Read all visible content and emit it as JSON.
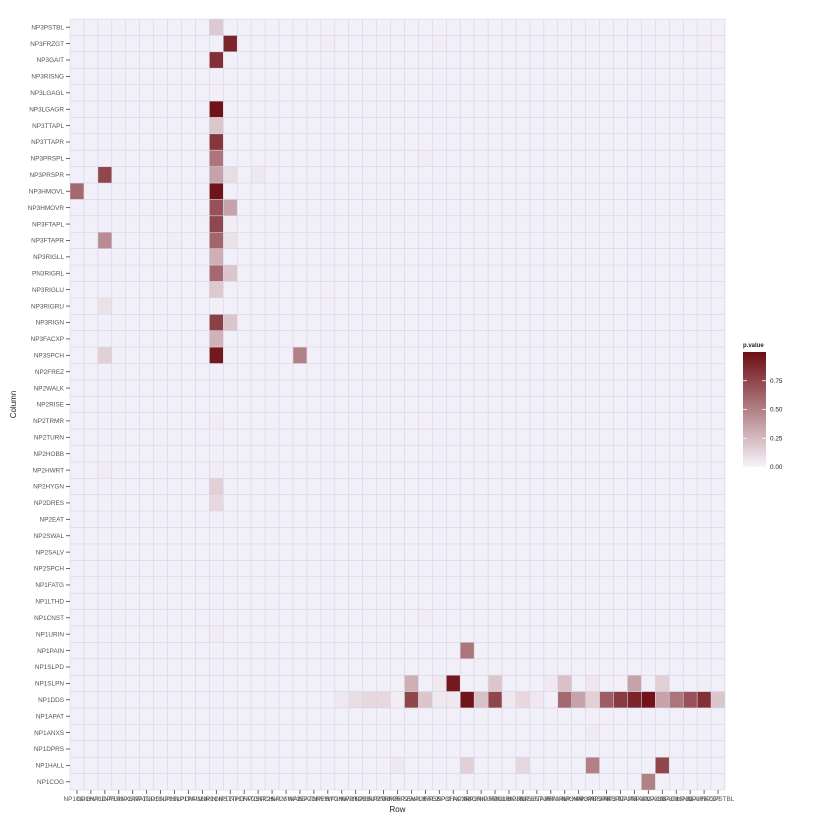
{
  "chart_data": {
    "type": "heatmap",
    "xlabel": "Row",
    "ylabel": "Column",
    "legend_title": "p.value",
    "legend_ticks": [
      "0.00",
      "0.25",
      "0.50",
      "0.75"
    ],
    "legend_tick_values": [
      0,
      0.25,
      0.5,
      0.75
    ],
    "legend_position": "right",
    "value_range": [
      0,
      1
    ],
    "colors": {
      "low": "#f6f4fa",
      "high": "#6d0d12",
      "grid": "#d8d2e6",
      "panel": "#f1eff7"
    },
    "grid": true,
    "x_tick_labels": [
      "NP1COG",
      "NP1HALL",
      "NP1DPRS",
      "NP1ANXS",
      "NP1APAT",
      "NP1DDS",
      "NP1SLPN",
      "NP1SLPD",
      "NP1PAIN",
      "NP1URIN",
      "NP1CNST",
      "NP1LTHD",
      "NP1FATG",
      "NP2SPCH",
      "NP2SALV",
      "NP2SWAL",
      "NP2EAT",
      "NP2DRES",
      "NP2HYGN",
      "NP2HWRT",
      "NP2HOBB",
      "NP2TURN",
      "NP2TRMR",
      "NP2RISE",
      "NP2WALK",
      "NP2FREZ",
      "NP3SPCH",
      "NP3FACXP",
      "NP3RIGN",
      "NP3RIGRU",
      "NP3RIGLU",
      "PN3RIGRL",
      "NP3RIGLL",
      "NP3FTAPR",
      "NP3FTAPL",
      "NP3HMOVR",
      "NP3HMOVL",
      "NP3PRSPR",
      "NP3PRSPL",
      "NP3TTAPR",
      "NP3TTAPL",
      "NP3LGAGR",
      "NP3LGAGL",
      "NP3RISNG",
      "NP3GAIT",
      "NP3FRZGT",
      "NP3PSTBL"
    ],
    "y_tick_labels": [
      "NP3PSTBL",
      "NP3FRZGT",
      "NP3GAIT",
      "NP3RISNG",
      "NP3LGAGL",
      "NP3LGAGR",
      "NP3TTAPL",
      "NP3TTAPR",
      "NP3PRSPL",
      "NP3PRSPR",
      "NP3HMOVL",
      "NP3HMOVR",
      "NP3FTAPL",
      "NP3FTAPR",
      "NP3RIGLL",
      "PN3RIGRL",
      "NP3RIGLU",
      "NP3RIGRU",
      "NP3RIGN",
      "NP3FACXP",
      "NP3SPCH",
      "NP2FREZ",
      "NP2WALK",
      "NP2RISE",
      "NP2TRMR",
      "NP2TURN",
      "NP2HOBB",
      "NP2HWRT",
      "NP2HYGN",
      "NP2DRES",
      "NP2EAT",
      "NP2SWAL",
      "NP2SALV",
      "NP2SPCH",
      "NP1FATG",
      "NP1LTHD",
      "NP1CNST",
      "NP1URIN",
      "NP1PAIN",
      "NP1SLPD",
      "NP1SLPN",
      "NP1DDS",
      "NP1APAT",
      "NP1ANXS",
      "NP1DPRS",
      "NP1HALL",
      "NP1COG"
    ],
    "cells": [
      [
        "NP1COG",
        "NP3HMOVL",
        0.6
      ],
      [
        "NP1DPRS",
        "NP3PRSPR",
        0.75
      ],
      [
        "NP1DPRS",
        "NP3FTAPR",
        0.45
      ],
      [
        "NP1DPRS",
        "NP3SPCH",
        0.15
      ],
      [
        "NP1DPRS",
        "NP3RIGRU",
        0.08
      ],
      [
        "NP1DPRS",
        "NP2HWRT",
        0.03
      ],
      [
        "NP1SLPD",
        "NP3FTAPR",
        0.03
      ],
      [
        "NP1CNST",
        "NP3PSTBL",
        0.18
      ],
      [
        "NP1CNST",
        "NP3GAIT",
        0.85
      ],
      [
        "NP1CNST",
        "NP3LGAGL",
        0.02
      ],
      [
        "NP1CNST",
        "NP3LGAGR",
        0.98
      ],
      [
        "NP1CNST",
        "NP3TTAPL",
        0.2
      ],
      [
        "NP1CNST",
        "NP3TTAPR",
        0.82
      ],
      [
        "NP1CNST",
        "NP3PRSPL",
        0.55
      ],
      [
        "NP1CNST",
        "NP3PRSPR",
        0.35
      ],
      [
        "NP1CNST",
        "NP3HMOVL",
        0.97
      ],
      [
        "NP1CNST",
        "NP3HMOVR",
        0.7
      ],
      [
        "NP1CNST",
        "NP3FTAPL",
        0.75
      ],
      [
        "NP1CNST",
        "NP3FTAPR",
        0.62
      ],
      [
        "NP1CNST",
        "NP3RIGLL",
        0.3
      ],
      [
        "NP1CNST",
        "PN3RIGRL",
        0.6
      ],
      [
        "NP1CNST",
        "NP3RIGLU",
        0.18
      ],
      [
        "NP1CNST",
        "NP3RIGN",
        0.78
      ],
      [
        "NP1CNST",
        "NP3FACXP",
        0.28
      ],
      [
        "NP1CNST",
        "NP3SPCH",
        0.95
      ],
      [
        "NP1CNST",
        "NP2TRMR",
        0.03
      ],
      [
        "NP1CNST",
        "NP2HWRT",
        0.03
      ],
      [
        "NP1CNST",
        "NP2HYGN",
        0.15
      ],
      [
        "NP1CNST",
        "NP2DRES",
        0.12
      ],
      [
        "NP1CNST",
        "NP1URIN",
        0.03
      ],
      [
        "NP1LTHD",
        "NP3FRZGT",
        0.9
      ],
      [
        "NP1LTHD",
        "NP3PRSPR",
        0.1
      ],
      [
        "NP1LTHD",
        "NP3HMOVR",
        0.35
      ],
      [
        "NP1LTHD",
        "NP3FTAPL",
        0.03
      ],
      [
        "NP1LTHD",
        "NP3FTAPR",
        0.08
      ],
      [
        "NP1LTHD",
        "PN3RIGRL",
        0.2
      ],
      [
        "NP1LTHD",
        "NP3RIGN",
        0.2
      ],
      [
        "NP2SPCH",
        "NP3PRSPR",
        0.05
      ],
      [
        "NP2EAT",
        "NP3SPCH",
        0.5
      ],
      [
        "NP2HWRT",
        "NP1DDS",
        0.05
      ],
      [
        "NP2HYGN",
        "NP3FRZGT",
        0.03
      ],
      [
        "NP2HYGN",
        "NP3RIGLU",
        0.02
      ],
      [
        "NP2HOBB",
        "NP1DDS",
        0.1
      ],
      [
        "NP2TURN",
        "NP1DDS",
        0.12
      ],
      [
        "NP2TRMR",
        "NP1DDS",
        0.12
      ],
      [
        "NP2RISE",
        "NP1HALL",
        0.05
      ],
      [
        "NP2RISE",
        "NP1DDS",
        0.03
      ],
      [
        "NP3SPCH",
        "NP3FRZGT",
        0.03
      ],
      [
        "NP3SPCH",
        "NP1DDS",
        0.05
      ],
      [
        "NP3RIGN",
        "NP1PAIN",
        0.55
      ],
      [
        "NP3RIGN",
        "NP1DDS",
        0.97
      ],
      [
        "NP3RIGN",
        "NP1HALL",
        0.15
      ],
      [
        "NP3RIGRU",
        "NP1DDS",
        0.22
      ],
      [
        "NP3RIGLU",
        "NP1SLPN",
        0.2
      ],
      [
        "NP3RIGLU",
        "NP1DDS",
        0.75
      ],
      [
        "PN3RIGRL",
        "NP1DDS",
        0.05
      ],
      [
        "NP3RIGLL",
        "NP1DDS",
        0.12
      ],
      [
        "NP3RIGLL",
        "NP1HALL",
        0.12
      ],
      [
        "NP3FTAPR",
        "NP1DDS",
        0.05
      ],
      [
        "NP3FTAPL",
        "NP1SLPN",
        0.05
      ],
      [
        "NP3HMOVR",
        "NP1SLPN",
        0.22
      ],
      [
        "NP3HMOVR",
        "NP1DDS",
        0.6
      ],
      [
        "NP3HMOVL",
        "NP1DDS",
        0.35
      ],
      [
        "NP3PRSPR",
        "NP1SLPN",
        0.06
      ],
      [
        "NP3PRSPR",
        "NP1DDS",
        0.15
      ],
      [
        "NP3PRSPR",
        "NP1ANXS",
        0.04
      ],
      [
        "NP3PRSPR",
        "NP1HALL",
        0.5
      ],
      [
        "NP3PRSPL",
        "NP1DDS",
        0.65
      ],
      [
        "NP3TTAPR",
        "NP1SLPN",
        0.02
      ],
      [
        "NP3TTAPR",
        "NP1DDS",
        0.8
      ],
      [
        "NP3TTAPL",
        "NP1SLPN",
        0.35
      ],
      [
        "NP3TTAPL",
        "NP1DDS",
        0.9
      ],
      [
        "NP3LGAGR",
        "NP1DDS",
        0.98
      ],
      [
        "NP3LGAGR",
        "NP1COG",
        0.5
      ],
      [
        "NP3LGAGL",
        "NP1SLPN",
        0.15
      ],
      [
        "NP3LGAGL",
        "NP1DDS",
        0.35
      ],
      [
        "NP3LGAGL",
        "NP1HALL",
        0.75
      ],
      [
        "NP3RISNG",
        "NP1DDS",
        0.55
      ],
      [
        "NP3GAIT",
        "NP1DDS",
        0.7
      ],
      [
        "NP3FRZGT",
        "NP1SLPN",
        0.03
      ],
      [
        "NP3FRZGT",
        "NP1DDS",
        0.85
      ],
      [
        "NP3FRZGT",
        "NP3FRZGT",
        0.03
      ],
      [
        "NP3PSTBL",
        "NP1DDS",
        0.2
      ],
      [
        "NP2FREZ",
        "NP1DDS",
        0.2
      ],
      [
        "NP2FREZ",
        "NP2TRMR",
        0.02
      ],
      [
        "NP2FREZ",
        "NP3PRSPL",
        0.03
      ],
      [
        "NP2FREZ",
        "NP1CNST",
        0.03
      ],
      [
        "NP2WALK",
        "NP1DDS",
        0.75
      ],
      [
        "NP2WALK",
        "NP1SLPN",
        0.3
      ],
      [
        "NP3SPCH",
        "NP1SLPN",
        0.05
      ],
      [
        "NP3FACXP",
        "NP1SLPN",
        0.95
      ],
      [
        "NP3FACXP",
        "NP1DDS",
        0.05
      ]
    ]
  }
}
